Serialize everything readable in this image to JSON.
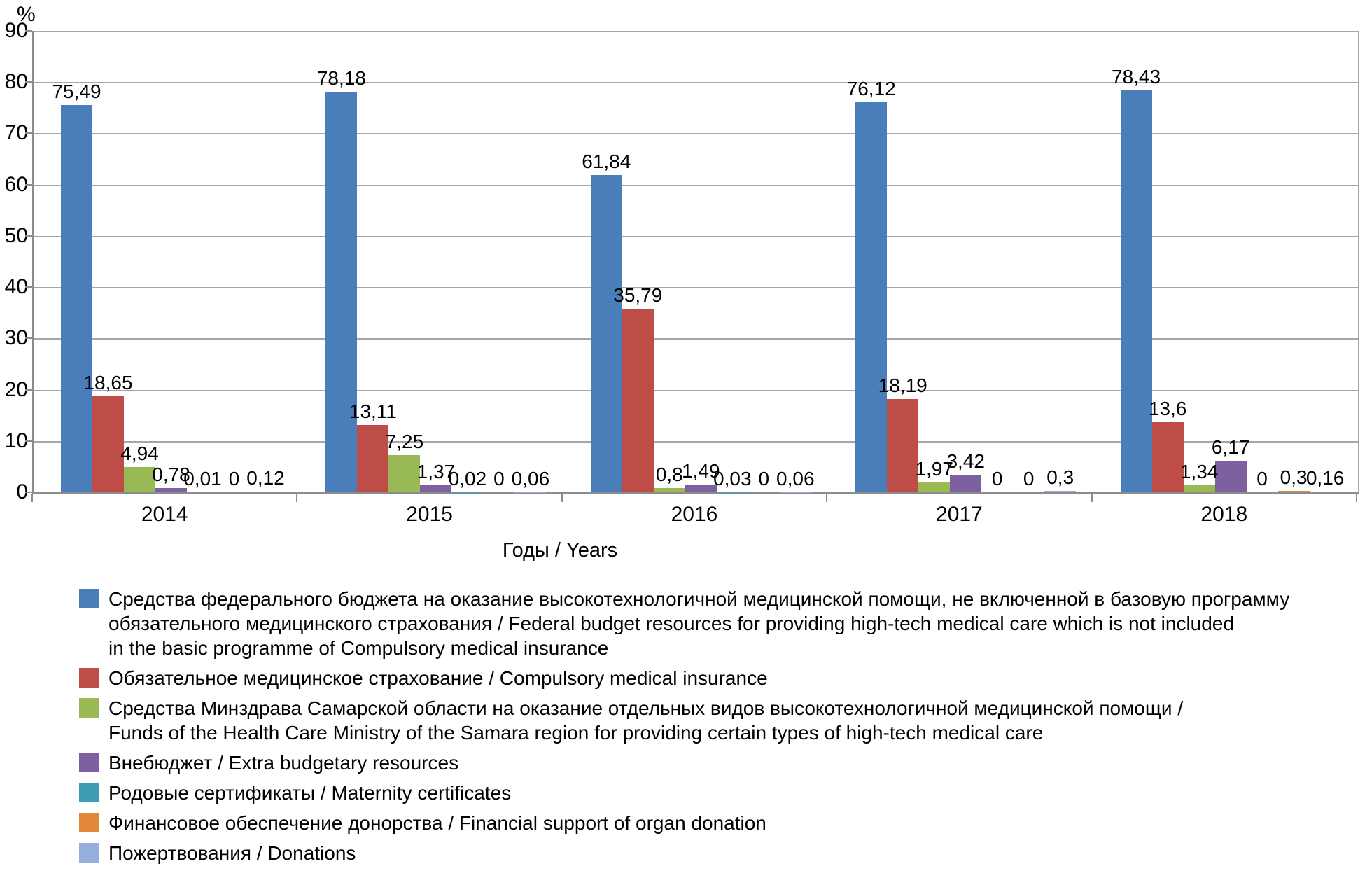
{
  "chart_data": {
    "type": "bar",
    "title": "",
    "y_unit_label": "%",
    "xlabel": "Годы / Years",
    "ylabel": "",
    "ylim": [
      0,
      90
    ],
    "ytick_step": 10,
    "grid": true,
    "legend_position": "bottom",
    "categories": [
      "2014",
      "2015",
      "2016",
      "2017",
      "2018"
    ],
    "series": [
      {
        "name": "Средства федерального бюджета на оказание высокотехнологичной медицинской помощи, не включенной в базовую программу обязательного медицинского страхования / Federal budget resources for providing high-tech medical care which is not included in the basic programme of Compulsory medical insurance",
        "color": "#4A7EBB",
        "values": [
          75.49,
          78.18,
          61.84,
          76.12,
          78.43
        ],
        "labels": [
          "75,49",
          "78,18",
          "61,84",
          "76,12",
          "78,43"
        ]
      },
      {
        "name": "Обязательное медицинское страхование / Compulsory medical insurance",
        "color": "#BE4D48",
        "values": [
          18.65,
          13.11,
          35.79,
          18.19,
          13.6
        ],
        "labels": [
          "18,65",
          "13,11",
          "35,79",
          "18,19",
          "13,6"
        ]
      },
      {
        "name": "Средства Минздрава Самарской области на оказание отдельных видов высокотехнологичной медицинской помощи / Funds of the Health Care Ministry of the Samara region for providing certain types of high-tech medical care",
        "color": "#98B954",
        "values": [
          4.94,
          7.25,
          0.8,
          1.97,
          1.34
        ],
        "labels": [
          "4,94",
          "7,25",
          "0,8",
          "1,97",
          "1,34"
        ]
      },
      {
        "name": "Внебюджет / Extra budgetary resources",
        "color": "#7D60A0",
        "values": [
          0.78,
          1.37,
          1.49,
          3.42,
          6.17
        ],
        "labels": [
          "0,78",
          "1,37",
          "1,49",
          "3,42",
          "6,17"
        ]
      },
      {
        "name": "Родовые сертификаты / Maternity certificates",
        "color": "#3D9DB3",
        "values": [
          0.01,
          0.02,
          0.03,
          0,
          0
        ],
        "labels": [
          "0,01",
          "0,02",
          "0,03",
          "0",
          "0"
        ]
      },
      {
        "name": "Финансовое обеспечение донорства / Financial support of organ donation",
        "color": "#E08838",
        "values": [
          0,
          0,
          0,
          0,
          0.3
        ],
        "labels": [
          "0",
          "0",
          "0",
          "0",
          "0,3"
        ]
      },
      {
        "name": "Пожертвования / Donations",
        "color": "#95AEDB",
        "values": [
          0.12,
          0.06,
          0.06,
          0.3,
          0.16
        ],
        "labels": [
          "0,12",
          "0,06",
          "0,06",
          "0,3",
          "0,16"
        ]
      }
    ],
    "legend": [
      {
        "lines": [
          "Средства федерального бюджета на оказание высокотехнологичной медицинской помощи, не включенной в базовую программу",
          "обязательного медицинского страхования / Federal budget resources for providing high-tech medical care which is not included",
          "in the basic programme of Compulsory medical insurance"
        ]
      },
      {
        "lines": [
          "Обязательное медицинское страхование / Compulsory medical insurance"
        ]
      },
      {
        "lines": [
          "Средства Минздрава Самарской области на оказание отдельных видов высокотехнологичной медицинской помощи  /",
          "Funds of the Health Care Ministry of the Samara region for providing certain types of high-tech medical care"
        ]
      },
      {
        "lines": [
          "Внебюджет / Extra budgetary resources"
        ]
      },
      {
        "lines": [
          "Родовые сертификаты / Maternity certificates"
        ]
      },
      {
        "lines": [
          "Финансовое обеспечение донорства / Financial support of organ donation"
        ]
      },
      {
        "lines": [
          "Пожертвования / Donations"
        ]
      }
    ]
  }
}
